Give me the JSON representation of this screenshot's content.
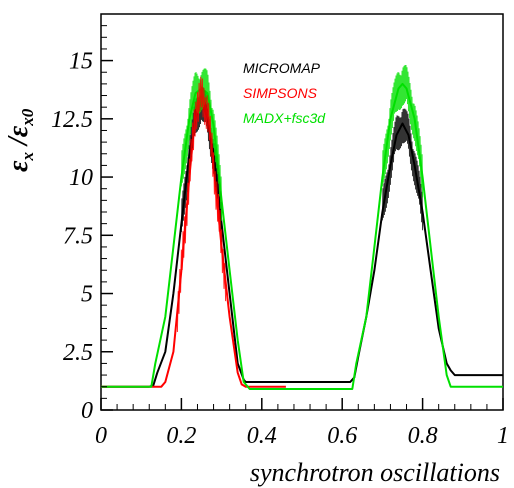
{
  "chart_data": {
    "type": "line",
    "xlabel": "synchrotron oscillations",
    "ylabel": {
      "base": "ε",
      "sub_num": "x",
      "sep": " /",
      "base2": "ε",
      "sub_den": "x0"
    },
    "xlim": [
      0,
      1
    ],
    "ylim": [
      0,
      17
    ],
    "x_ticks": [
      "0",
      "0.2",
      "0.4",
      "0.6",
      "0.8",
      "1"
    ],
    "x_tick_values": [
      0,
      0.2,
      0.4,
      0.6,
      0.8,
      1
    ],
    "y_ticks": [
      "0",
      "2.5",
      "5",
      "7.5",
      "10",
      "12.5",
      "15"
    ],
    "y_tick_values": [
      0,
      2.5,
      5,
      7.5,
      10,
      12.5,
      15
    ],
    "grid": false,
    "legend_placement": "top-right",
    "series": [
      {
        "name": "MICROMAP",
        "color": "#000000",
        "points": [
          [
            0.0,
            1.0
          ],
          [
            0.12,
            1.0
          ],
          [
            0.13,
            1.05
          ],
          [
            0.14,
            1.6
          ],
          [
            0.16,
            2.5
          ],
          [
            0.18,
            5.0
          ],
          [
            0.2,
            8.0
          ],
          [
            0.22,
            11.0
          ],
          [
            0.235,
            12.5
          ],
          [
            0.25,
            13.3
          ],
          [
            0.265,
            12.5
          ],
          [
            0.28,
            11.0
          ],
          [
            0.3,
            8.0
          ],
          [
            0.32,
            5.0
          ],
          [
            0.34,
            2.0
          ],
          [
            0.355,
            1.3
          ],
          [
            0.36,
            1.2
          ],
          [
            0.62,
            1.2
          ],
          [
            0.63,
            1.4
          ],
          [
            0.64,
            2.3
          ],
          [
            0.66,
            4.0
          ],
          [
            0.68,
            6.0
          ],
          [
            0.7,
            8.5
          ],
          [
            0.72,
            10.5
          ],
          [
            0.735,
            11.8
          ],
          [
            0.75,
            12.3
          ],
          [
            0.765,
            11.8
          ],
          [
            0.78,
            10.5
          ],
          [
            0.8,
            8.5
          ],
          [
            0.82,
            6.0
          ],
          [
            0.84,
            3.5
          ],
          [
            0.86,
            2.0
          ],
          [
            0.87,
            1.7
          ],
          [
            0.88,
            1.5
          ],
          [
            1.0,
            1.5
          ]
        ]
      },
      {
        "name": "SIMPSONS",
        "color": "#ff0000",
        "points": [
          [
            0.0,
            1.0
          ],
          [
            0.15,
            1.0
          ],
          [
            0.16,
            1.2
          ],
          [
            0.18,
            2.5
          ],
          [
            0.2,
            6.0
          ],
          [
            0.22,
            10.0
          ],
          [
            0.235,
            12.8
          ],
          [
            0.25,
            13.5
          ],
          [
            0.265,
            12.8
          ],
          [
            0.28,
            10.5
          ],
          [
            0.3,
            7.0
          ],
          [
            0.32,
            4.0
          ],
          [
            0.34,
            1.6
          ],
          [
            0.35,
            1.1
          ],
          [
            0.36,
            1.0
          ],
          [
            0.46,
            1.0
          ]
        ]
      },
      {
        "name": "MADX+fsc3d",
        "color": "#00e000",
        "points": [
          [
            0.0,
            1.0
          ],
          [
            0.125,
            1.0
          ],
          [
            0.135,
            2.0
          ],
          [
            0.16,
            4.0
          ],
          [
            0.18,
            7.0
          ],
          [
            0.2,
            10.0
          ],
          [
            0.22,
            12.5
          ],
          [
            0.235,
            13.6
          ],
          [
            0.25,
            13.8
          ],
          [
            0.265,
            13.6
          ],
          [
            0.28,
            12.2
          ],
          [
            0.3,
            9.0
          ],
          [
            0.32,
            6.0
          ],
          [
            0.34,
            3.0
          ],
          [
            0.355,
            1.2
          ],
          [
            0.37,
            0.9
          ],
          [
            0.625,
            0.9
          ],
          [
            0.635,
            2.0
          ],
          [
            0.66,
            4.0
          ],
          [
            0.68,
            7.0
          ],
          [
            0.7,
            10.0
          ],
          [
            0.72,
            12.5
          ],
          [
            0.74,
            13.8
          ],
          [
            0.75,
            14.0
          ],
          [
            0.76,
            13.8
          ],
          [
            0.78,
            12.5
          ],
          [
            0.8,
            10.0
          ],
          [
            0.82,
            7.0
          ],
          [
            0.84,
            4.0
          ],
          [
            0.86,
            1.5
          ],
          [
            0.87,
            1.0
          ],
          [
            1.0,
            1.0
          ]
        ]
      }
    ],
    "ripple": {
      "series": "MADX+fsc3d",
      "amplitude": 1.0,
      "segments": [
        [
          0.2,
          0.3
        ],
        [
          0.7,
          0.8
        ]
      ]
    }
  }
}
